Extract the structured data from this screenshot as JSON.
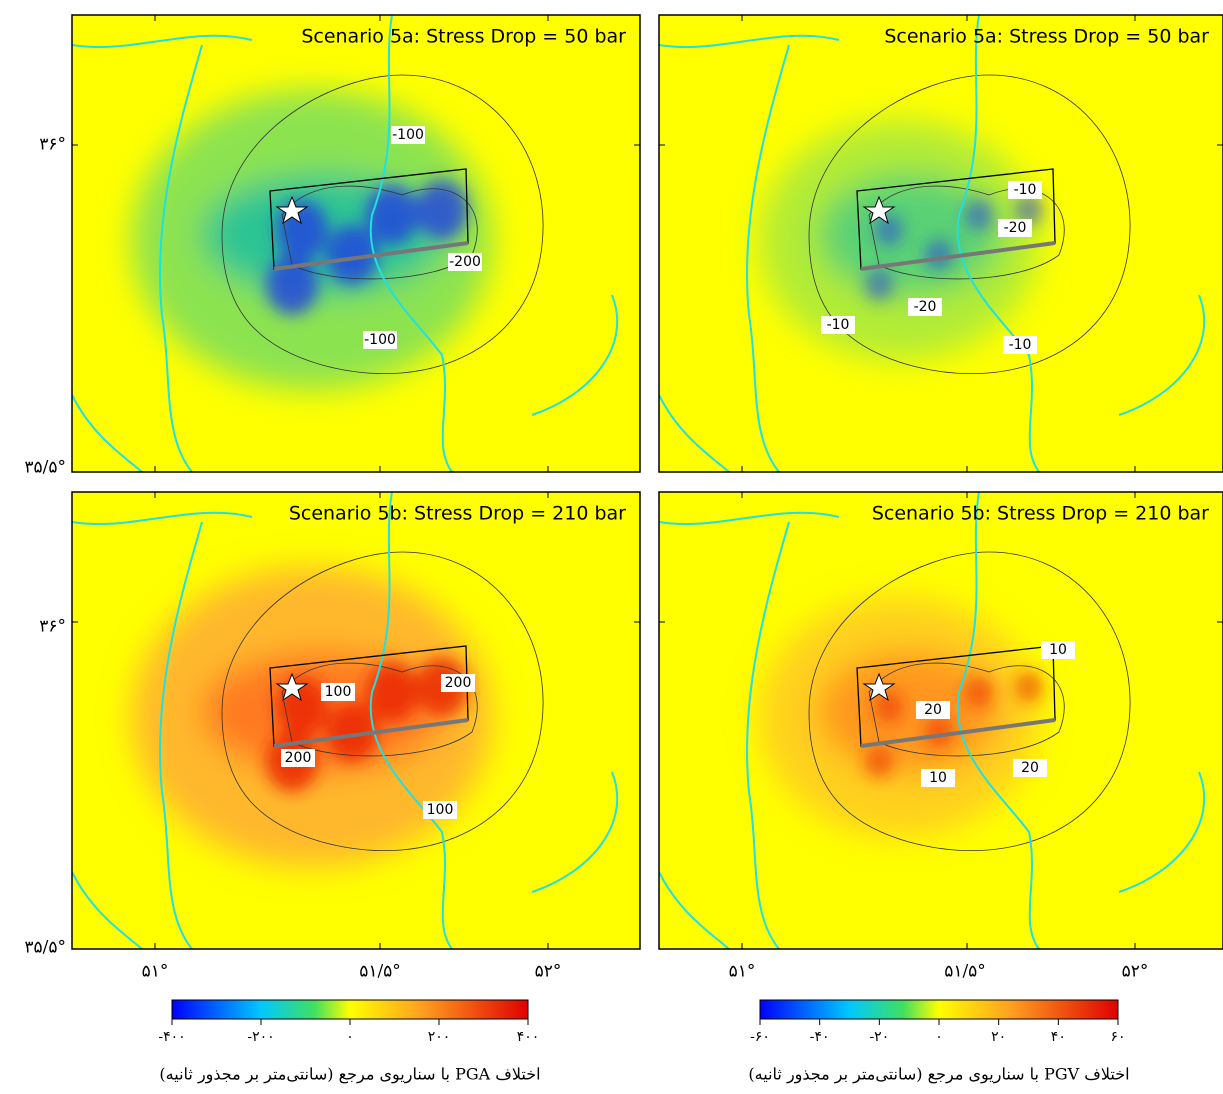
{
  "panels": [
    {
      "title": "Scenario 5a: Stress Drop = 50 bar",
      "contour_labels": [
        "-100",
        "-200",
        "-100"
      ]
    },
    {
      "title": "Scenario 5a: Stress Drop = 50 bar",
      "contour_labels": [
        "-10",
        "-20",
        "-20",
        "-10",
        "-10"
      ]
    },
    {
      "title": "Scenario 5b: Stress Drop = 210 bar",
      "contour_labels": [
        "100",
        "200",
        "200",
        "100"
      ]
    },
    {
      "title": "Scenario 5b: Stress Drop = 210 bar",
      "contour_labels": [
        "10",
        "20",
        "10",
        "20"
      ]
    }
  ],
  "y_axis_labels": [
    "۳۶°",
    "۳۵/۵°"
  ],
  "x_axis_labels": [
    "۵۱°",
    "۵۱/۵°",
    "۵۲°"
  ],
  "colorbars": [
    {
      "ticks": [
        "-۴۰۰",
        "-۲۰۰",
        "۰",
        "۲۰۰",
        "۴۰۰"
      ],
      "caption": "اختلاف PGA با سناریوی مرجع (سانتی‌متر بر مجذور ثانیه)"
    },
    {
      "ticks": [
        "-۶۰",
        "-۴۰",
        "-۲۰",
        "۰",
        "۲۰",
        "۴۰",
        "۶۰"
      ],
      "caption": "اختلاف PGV با سناریوی مرجع (سانتی‌متر بر مجذور ثانیه)"
    }
  ]
}
